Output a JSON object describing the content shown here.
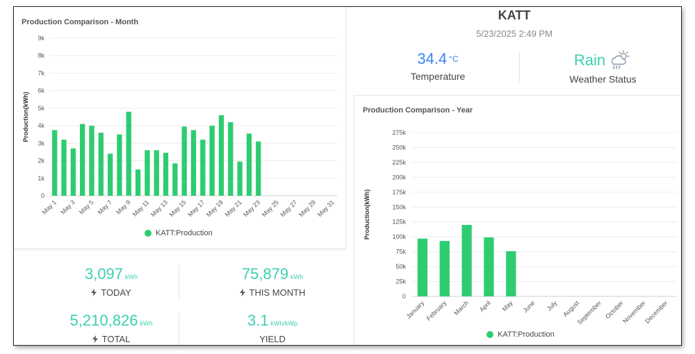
{
  "site": {
    "name": "KATT",
    "datetime": "5/23/2025 2:49 PM"
  },
  "weather": {
    "temperature_value": "34.4",
    "temperature_unit": "°C",
    "temperature_label": "Temperature",
    "status_value": "Rain",
    "status_label": "Weather Status",
    "status_icon": "rain-cloud-icon"
  },
  "stats": {
    "today": {
      "value": "3,097",
      "unit": "kWh",
      "label": "TODAY",
      "icon": "bolt-icon"
    },
    "this_month": {
      "value": "75,879",
      "unit": "kWh",
      "label": "THIS MONTH",
      "icon": "bolt-icon"
    },
    "total": {
      "value": "5,210,826",
      "unit": "kWh",
      "label": "TOTAL",
      "icon": "bolt-icon"
    },
    "yield": {
      "value": "3.1",
      "unit": "kWh/kWp",
      "label": "YIELD"
    }
  },
  "colors": {
    "bar": "#2ecc71",
    "accent": "#3ccfb0",
    "temp": "#3b82f6"
  },
  "chart_data": [
    {
      "type": "bar",
      "title": "Production Comparison - Month",
      "ylabel": "Production(kWh)",
      "xlabel": "",
      "ylim": [
        0,
        9000
      ],
      "yticks": [
        0,
        1000,
        2000,
        3000,
        4000,
        5000,
        6000,
        7000,
        8000,
        9000
      ],
      "ytick_labels": [
        "0",
        "1k",
        "2k",
        "3k",
        "4k",
        "5k",
        "6k",
        "7k",
        "8k",
        "9k"
      ],
      "categories": [
        "May 1",
        "May 2",
        "May 3",
        "May 4",
        "May 5",
        "May 6",
        "May 7",
        "May 8",
        "May 9",
        "May 10",
        "May 11",
        "May 12",
        "May 13",
        "May 14",
        "May 15",
        "May 16",
        "May 17",
        "May 18",
        "May 19",
        "May 20",
        "May 21",
        "May 22",
        "May 23",
        "May 24",
        "May 25",
        "May 26",
        "May 27",
        "May 28",
        "May 29",
        "May 30",
        "May 31"
      ],
      "xtick_labels": [
        "May 1",
        "",
        "May 3",
        "",
        "May 5",
        "",
        "May 7",
        "",
        "May 9",
        "",
        "May 11",
        "",
        "May 13",
        "",
        "May 15",
        "",
        "May 17",
        "",
        "May 19",
        "",
        "May 21",
        "",
        "May 23",
        "",
        "May 25",
        "",
        "May 27",
        "",
        "May 29",
        "",
        "May 31"
      ],
      "grid": true,
      "legend_position": "bottom",
      "series": [
        {
          "name": "KATT:Production",
          "values": [
            3750,
            3200,
            2700,
            4100,
            4000,
            3600,
            2400,
            3500,
            4800,
            1500,
            2600,
            2600,
            2450,
            1850,
            3950,
            3750,
            3200,
            4000,
            4600,
            4200,
            1950,
            3550,
            3097,
            null,
            null,
            null,
            null,
            null,
            null,
            null,
            null
          ]
        }
      ]
    },
    {
      "type": "bar",
      "title": "Production Comparison - Year",
      "ylabel": "Production(kWh)",
      "xlabel": "",
      "ylim": [
        0,
        275000
      ],
      "yticks": [
        0,
        25000,
        50000,
        75000,
        100000,
        125000,
        150000,
        175000,
        200000,
        225000,
        250000,
        275000
      ],
      "ytick_labels": [
        "0",
        "25k",
        "50k",
        "75k",
        "100k",
        "125k",
        "150k",
        "175k",
        "200k",
        "225k",
        "250k",
        "275k"
      ],
      "categories": [
        "January",
        "February",
        "March",
        "April",
        "May",
        "June",
        "July",
        "August",
        "September",
        "October",
        "November",
        "December"
      ],
      "xtick_labels": [
        "January",
        "February",
        "March",
        "April",
        "May",
        "June",
        "July",
        "August",
        "September",
        "October",
        "November",
        "December"
      ],
      "grid": true,
      "legend_position": "bottom",
      "series": [
        {
          "name": "KATT:Production",
          "values": [
            97000,
            93000,
            120000,
            99000,
            75879,
            null,
            null,
            null,
            null,
            null,
            null,
            null
          ]
        }
      ]
    }
  ]
}
